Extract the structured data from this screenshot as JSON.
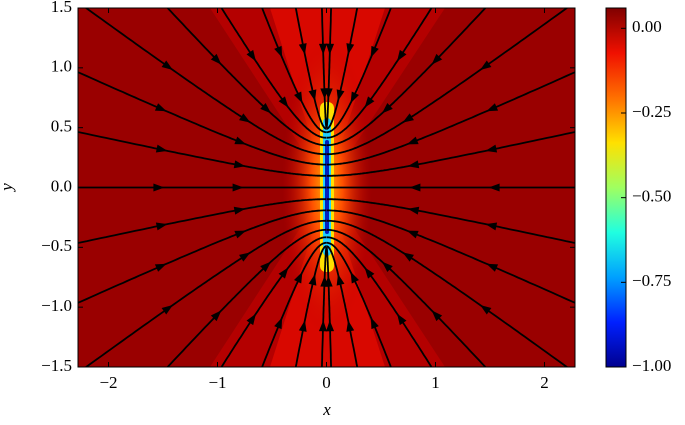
{
  "chart_data": {
    "type": "streamplot",
    "x_label": "x",
    "y_label": "y",
    "xlim": [
      -2.28,
      2.28
    ],
    "xticks": [
      {
        "value": -2,
        "label": "−2"
      },
      {
        "value": -1,
        "label": "−1"
      },
      0,
      1,
      2
    ],
    "ylim": [
      -1.5,
      1.5
    ],
    "yticks": [
      {
        "value": -1.5,
        "label": "−1.5"
      },
      {
        "value": -1.0,
        "label": "−1.0"
      },
      {
        "value": -0.5,
        "label": "−0.5"
      },
      {
        "value": 0.0,
        "label": "0.0"
      },
      {
        "value": 0.5,
        "label": "0.5"
      },
      {
        "value": 1.0,
        "label": "1.0"
      },
      {
        "value": 1.5,
        "label": "1.5"
      }
    ],
    "colorbar": {
      "lim": [
        -1.0,
        0.06
      ],
      "ticks": [
        {
          "value": 0,
          "label": "0.00"
        },
        {
          "value": -0.25,
          "label": "−0.25"
        },
        {
          "value": -0.5,
          "label": "−0.50"
        },
        {
          "value": -0.75,
          "label": "−0.75"
        },
        {
          "value": -1.0,
          "label": "−1.00"
        }
      ],
      "colors": [
        "#00008f",
        "#0020ff",
        "#00a0ff",
        "#20ffe0",
        "#a0ff60",
        "#ffe000",
        "#ff7000",
        "#f01000",
        "#800000"
      ]
    },
    "line_color": "#000000"
  }
}
